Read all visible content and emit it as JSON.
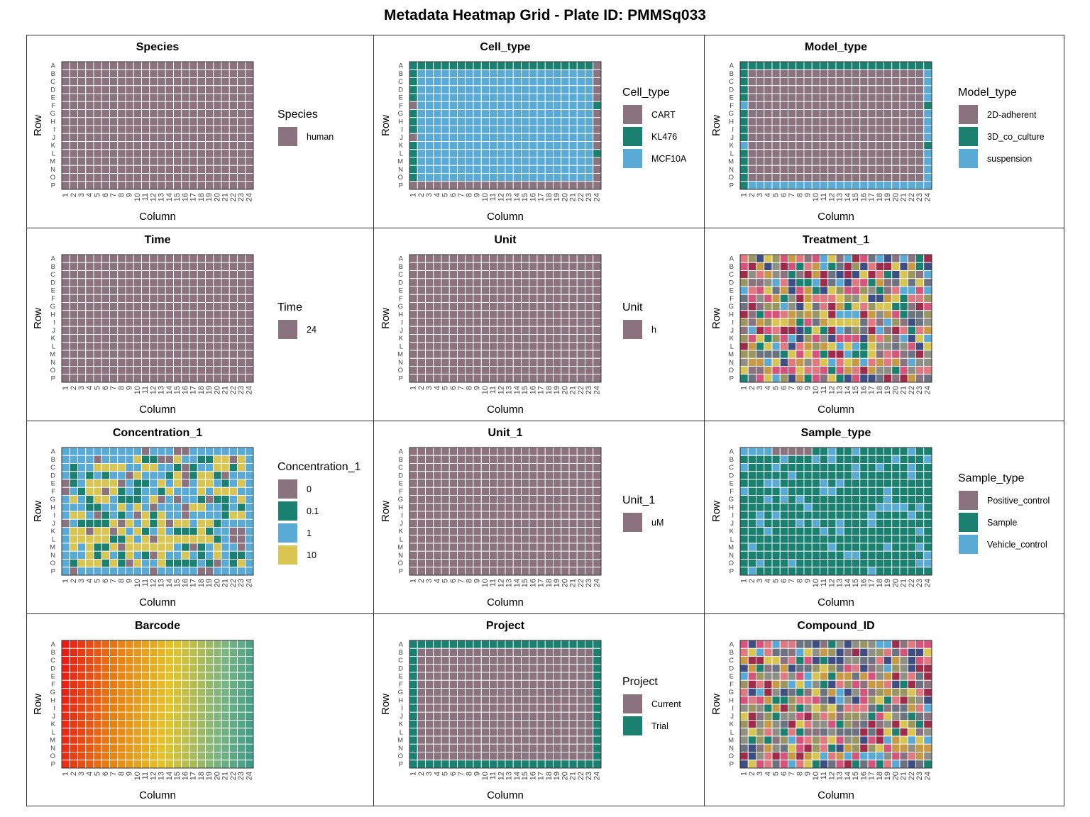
{
  "title": "Metadata Heatmap Grid - Plate ID: PMMSq033",
  "palette": {
    "mauve": "#8A737E",
    "teal": "#1A8070",
    "sky": "#5AAAD6",
    "gold": "#D8C552",
    "rose": "#E07A80",
    "olive": "#9A9661",
    "navy": "#3E4E82",
    "crimson": "#9E2B49",
    "pink": "#D4547B",
    "slate": "#6C7380",
    "amber": "#C99A45",
    "grey": "#8E8F85"
  },
  "chart_data": [
    {
      "type": "heatmap",
      "title": "Species",
      "xlabel": "Column",
      "ylabel": "Row",
      "rows": [
        "A",
        "B",
        "C",
        "D",
        "E",
        "F",
        "G",
        "H",
        "I",
        "J",
        "K",
        "L",
        "M",
        "N",
        "O",
        "P"
      ],
      "columns": [
        "1",
        "2",
        "3",
        "4",
        "5",
        "6",
        "7",
        "8",
        "9",
        "10",
        "11",
        "12",
        "13",
        "14",
        "15",
        "16",
        "17",
        "18",
        "19",
        "20",
        "21",
        "22",
        "23",
        "24"
      ],
      "layout": "uniform",
      "legend": {
        "title": "Species",
        "items": [
          {
            "label": "human",
            "color": "#8A737E"
          }
        ]
      }
    },
    {
      "type": "heatmap",
      "title": "Cell_type",
      "xlabel": "Column",
      "ylabel": "Row",
      "layout": "cell_type",
      "legend": {
        "title": "Cell_type",
        "items": [
          {
            "label": "CART",
            "color": "#8A737E"
          },
          {
            "label": "KL476",
            "color": "#1A8070"
          },
          {
            "label": "MCF10A",
            "color": "#5AAAD6"
          }
        ]
      }
    },
    {
      "type": "heatmap",
      "title": "Model_type",
      "xlabel": "Column",
      "ylabel": "Row",
      "layout": "model_type",
      "legend": {
        "title": "Model_type",
        "items": [
          {
            "label": "2D-adherent",
            "color": "#8A737E"
          },
          {
            "label": "3D_co_culture",
            "color": "#1A8070"
          },
          {
            "label": "suspension",
            "color": "#5AAAD6"
          }
        ]
      }
    },
    {
      "type": "heatmap",
      "title": "Time",
      "xlabel": "Column",
      "ylabel": "Row",
      "layout": "uniform",
      "legend": {
        "title": "Time",
        "items": [
          {
            "label": "24",
            "color": "#8A737E"
          }
        ]
      }
    },
    {
      "type": "heatmap",
      "title": "Unit",
      "xlabel": "Column",
      "ylabel": "Row",
      "layout": "uniform",
      "legend": {
        "title": "Unit",
        "items": [
          {
            "label": "h",
            "color": "#8A737E"
          }
        ]
      }
    },
    {
      "type": "heatmap",
      "title": "Treatment_1",
      "xlabel": "Column",
      "ylabel": "Row",
      "layout": "mosaic",
      "legend": null
    },
    {
      "type": "heatmap",
      "title": "Concentration_1",
      "xlabel": "Column",
      "ylabel": "Row",
      "layout": "concentration",
      "legend": {
        "title": "Concentration_1",
        "items": [
          {
            "label": "0",
            "color": "#8A737E"
          },
          {
            "label": "0.1",
            "color": "#1A8070"
          },
          {
            "label": "1",
            "color": "#5AAAD6"
          },
          {
            "label": "10",
            "color": "#D8C552"
          }
        ]
      }
    },
    {
      "type": "heatmap",
      "title": "Unit_1",
      "xlabel": "Column",
      "ylabel": "Row",
      "layout": "uniform",
      "legend": {
        "title": "Unit_1",
        "items": [
          {
            "label": "uM",
            "color": "#8A737E"
          }
        ]
      }
    },
    {
      "type": "heatmap",
      "title": "Sample_type",
      "xlabel": "Column",
      "ylabel": "Row",
      "layout": "sample_type",
      "legend": {
        "title": "Sample_type",
        "items": [
          {
            "label": "Positive_control",
            "color": "#8A737E"
          },
          {
            "label": "Sample",
            "color": "#1A8070"
          },
          {
            "label": "Vehicle_control",
            "color": "#5AAAD6"
          }
        ]
      }
    },
    {
      "type": "heatmap",
      "title": "Barcode",
      "xlabel": "Column",
      "ylabel": "Row",
      "layout": "gradient",
      "legend": null
    },
    {
      "type": "heatmap",
      "title": "Project",
      "xlabel": "Column",
      "ylabel": "Row",
      "layout": "project",
      "legend": {
        "title": "Project",
        "items": [
          {
            "label": "Current",
            "color": "#8A737E"
          },
          {
            "label": "Trial",
            "color": "#1A8070"
          }
        ]
      }
    },
    {
      "type": "heatmap",
      "title": "Compound_ID",
      "xlabel": "Column",
      "ylabel": "Row",
      "layout": "mosaic",
      "legend": null
    }
  ]
}
